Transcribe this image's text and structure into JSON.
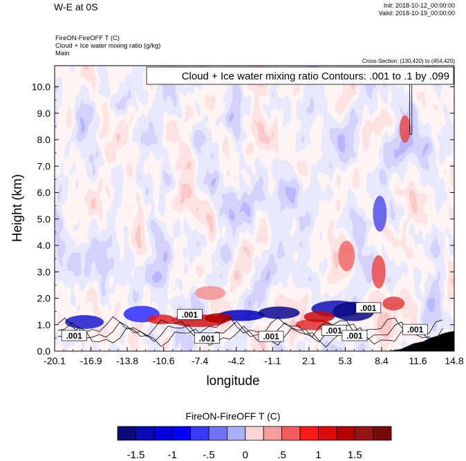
{
  "header": {
    "title": "W-E at 0S",
    "init": "Init: 2018-10-12_00:00:00",
    "valid": "Valid: 2018-10-19_00:00:00",
    "field_line": "FireON-FireOFF T   (C)",
    "overlay_line": "Cloud + Ice water mixing ratio   (g/kg)",
    "run_line": "Main",
    "cross_section": "Cross-Section: (130,420) to (454,420)"
  },
  "chart_data": {
    "type": "heatmap",
    "title": "W-E at 0S",
    "xlabel": "longitude",
    "ylabel": "Height (km)",
    "xlim": [
      -20.1,
      14.8
    ],
    "ylim": [
      0.0,
      10.8
    ],
    "x_ticks": [
      "-20.1",
      "-16.9",
      "-13.8",
      "-10.6",
      "-7.4",
      "-4.2",
      "-1.1",
      "2.1",
      "5.3",
      "8.4",
      "11.6",
      "14.8"
    ],
    "y_ticks": [
      "0.0",
      "1.0",
      "2.0",
      "3.0",
      "4.0",
      "5.0",
      "6.0",
      "7.0",
      "8.0",
      "9.0",
      "10.0"
    ],
    "y_tick_values": [
      0,
      1,
      2,
      3,
      4,
      5,
      6,
      7,
      8,
      9,
      10
    ],
    "contour_info": "Cloud + Ice water mixing ratio Contours: .001 to .1 by .099",
    "contour_labels": [
      {
        "x": -18.4,
        "y": 0.55,
        "text": ".001"
      },
      {
        "x": -8.3,
        "y": 1.35,
        "text": ".001"
      },
      {
        "x": -6.8,
        "y": 0.45,
        "text": ".001"
      },
      {
        "x": -1.2,
        "y": 0.52,
        "text": ".001"
      },
      {
        "x": 4.3,
        "y": 0.75,
        "text": ".001"
      },
      {
        "x": 6.1,
        "y": 0.55,
        "text": ".001"
      },
      {
        "x": 7.3,
        "y": 1.6,
        "text": ".001"
      },
      {
        "x": 11.4,
        "y": 0.78,
        "text": ".001"
      }
    ],
    "colorbar": {
      "title": "FireON-FireOFF T  (C)",
      "tick_labels": [
        "-1.5",
        "-1",
        "-.5",
        "0",
        ".5",
        "1",
        "1.5"
      ],
      "colors": [
        "#0a0a78",
        "#0b0bb4",
        "#0000dc",
        "#0000ff",
        "#3a3aff",
        "#7272f4",
        "#aab0f6",
        "#fcd6d6",
        "#f89c9c",
        "#f25c5c",
        "#ff1a1a",
        "#dc0a0a",
        "#b40000",
        "#961414",
        "#7a0a0a"
      ]
    },
    "grid": false,
    "legend": "none"
  }
}
